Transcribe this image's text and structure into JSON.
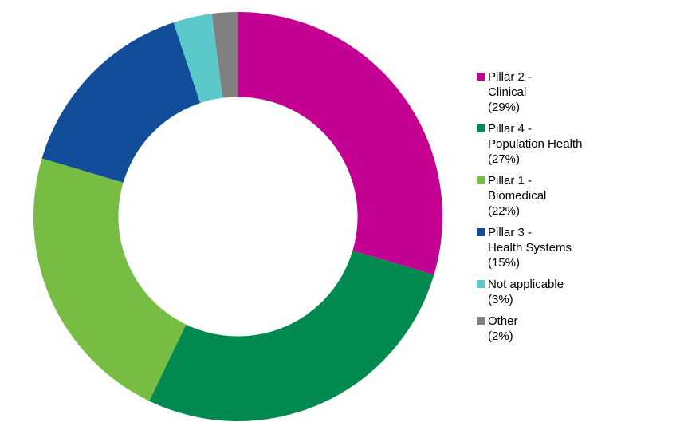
{
  "chart_data": {
    "type": "pie",
    "subtype": "donut",
    "title": "",
    "categories": [
      "Pillar 2 - Clinical",
      "Pillar 4 - Population Health",
      "Pillar 1 - Biomedical",
      "Pillar 3 - Health Systems",
      "Not applicable",
      "Other"
    ],
    "values": [
      29,
      27,
      22,
      15,
      3,
      2
    ],
    "unit": "%",
    "colors": [
      "#C40093",
      "#008A50",
      "#77BD43",
      "#114D99",
      "#5BC8CC",
      "#808080"
    ],
    "start_angle_deg": 0,
    "direction": "clockwise",
    "inner_radius_ratio": 0.585,
    "legend_position": "right",
    "background_color": "#ffffff",
    "text_color": "#000000"
  },
  "legend": {
    "items": [
      {
        "label": "Pillar 2 - Clinical",
        "value_label": "(29%)",
        "color": "#C40093",
        "lines": [
          "Pillar 2 -",
          "Clinical",
          "(29%)"
        ]
      },
      {
        "label": "Pillar 4 - Population Health",
        "value_label": "(27%)",
        "color": "#008A50",
        "lines": [
          "Pillar 4 -",
          "Population Health",
          "(27%)"
        ]
      },
      {
        "label": "Pillar 1 - Biomedical",
        "value_label": "(22%)",
        "color": "#77BD43",
        "lines": [
          "Pillar 1 -",
          "Biomedical",
          "(22%)"
        ]
      },
      {
        "label": "Pillar 3 - Health Systems",
        "value_label": "(15%)",
        "color": "#114D99",
        "lines": [
          "Pillar 3 -",
          "Health Systems",
          "(15%)"
        ]
      },
      {
        "label": "Not applicable",
        "value_label": "(3%)",
        "color": "#5BC8CC",
        "lines": [
          "Not applicable",
          "(3%)"
        ]
      },
      {
        "label": "Other",
        "value_label": "(2%)",
        "color": "#808080",
        "lines": [
          "Other",
          "(2%)"
        ]
      }
    ]
  }
}
